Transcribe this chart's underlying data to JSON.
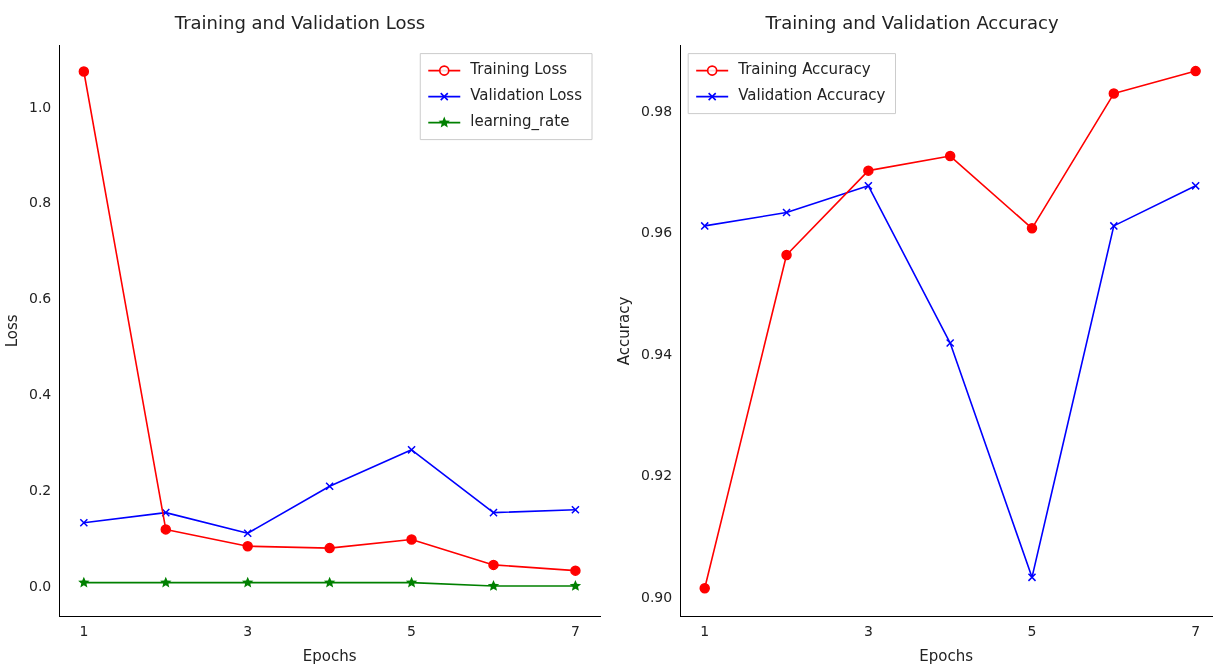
{
  "chart_data": [
    {
      "type": "line",
      "title": "Training and Validation Loss",
      "xlabel": "Epochs",
      "ylabel": "Loss",
      "x": [
        1,
        2,
        3,
        4,
        5,
        6,
        7
      ],
      "xlim": [
        0.7,
        7.3
      ],
      "xticks": [
        1,
        3,
        5,
        7
      ],
      "ylim": [
        -0.06,
        1.13
      ],
      "yticks": [
        {
          "value": 0,
          "label": "0.0"
        },
        0.2,
        0.4,
        0.6,
        0.8,
        {
          "value": 1,
          "label": "1.0"
        }
      ],
      "grid": false,
      "legend": "top right",
      "series": [
        {
          "name": "Training Loss",
          "color": "#ff0000",
          "marker": "circle",
          "values": [
            1.076,
            0.121,
            0.086,
            0.082,
            0.1,
            0.047,
            0.035
          ]
        },
        {
          "name": "Validation Loss",
          "color": "#0000ff",
          "marker": "cross",
          "values": [
            0.135,
            0.156,
            0.113,
            0.211,
            0.287,
            0.156,
            0.162
          ]
        },
        {
          "name": "learning_rate",
          "color": "#008000",
          "marker": "star",
          "values": [
            0.01,
            0.01,
            0.01,
            0.01,
            0.01,
            0.003,
            0.003
          ]
        }
      ]
    },
    {
      "type": "line",
      "title": "Training and Validation Accuracy",
      "xlabel": "Epochs",
      "ylabel": "Accuracy",
      "x": [
        1,
        2,
        3,
        4,
        5,
        6,
        7
      ],
      "xlim": [
        0.7,
        7.2
      ],
      "xticks": [
        1,
        3,
        5,
        7
      ],
      "ylim": [
        0.897,
        0.991
      ],
      "yticks": [
        {
          "value": 0.9,
          "label": "0.90"
        },
        0.92,
        0.94,
        0.96,
        0.98
      ],
      "grid": false,
      "legend": "top left",
      "series": [
        {
          "name": "Training Accuracy",
          "color": "#ff0000",
          "marker": "circle",
          "values": [
            0.9016,
            0.9565,
            0.9704,
            0.9728,
            0.9609,
            0.9831,
            0.9868
          ]
        },
        {
          "name": "Validation Accuracy",
          "color": "#0000ff",
          "marker": "cross",
          "values": [
            0.9613,
            0.9635,
            0.9679,
            0.942,
            0.9034,
            0.9613,
            0.9679
          ]
        }
      ]
    }
  ]
}
